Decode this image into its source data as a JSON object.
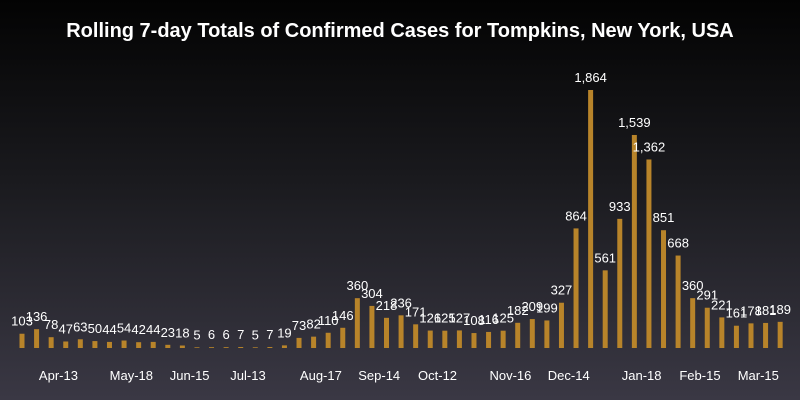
{
  "chart_data": {
    "type": "bar",
    "title": "Rolling 7-day Totals of Confirmed Cases for Tompkins, New York, USA",
    "xlabel": "",
    "ylabel": "",
    "values": [
      103,
      136,
      78,
      47,
      63,
      50,
      44,
      54,
      42,
      44,
      23,
      18,
      5,
      6,
      6,
      7,
      5,
      7,
      19,
      73,
      82,
      110,
      146,
      360,
      304,
      218,
      236,
      171,
      126,
      125,
      127,
      108,
      116,
      125,
      182,
      209,
      199,
      327,
      864,
      1864,
      561,
      933,
      1539,
      1362,
      851,
      668,
      360,
      291,
      221,
      161,
      178,
      181,
      189
    ],
    "data_labels": [
      "103",
      "136",
      "78",
      "47",
      "63",
      "50",
      "44",
      "54",
      "42",
      "44",
      "23",
      "18",
      "5",
      "6",
      "6",
      "7",
      "5",
      "7",
      "19",
      "73",
      "82",
      "110",
      "146",
      "360",
      "304",
      "218",
      "236",
      "171",
      "126",
      "125",
      "127",
      "108",
      "116",
      "125",
      "182",
      "209",
      "199",
      "327",
      "864",
      "1,864",
      "561",
      "933",
      "1,539",
      "1,362",
      "851",
      "668",
      "360",
      "291",
      "221",
      "161",
      "178",
      "181",
      "189"
    ],
    "x_ticks": [
      {
        "label": "Apr-13",
        "index": 2.5
      },
      {
        "label": "May-18",
        "index": 7.5
      },
      {
        "label": "Jun-15",
        "index": 11.5
      },
      {
        "label": "Jul-13",
        "index": 15.5
      },
      {
        "label": "Aug-17",
        "index": 20.5
      },
      {
        "label": "Sep-14",
        "index": 24.5
      },
      {
        "label": "Oct-12",
        "index": 28.5
      },
      {
        "label": "Nov-16",
        "index": 33.5
      },
      {
        "label": "Dec-14",
        "index": 37.5
      },
      {
        "label": "Jan-18",
        "index": 42.5
      },
      {
        "label": "Feb-15",
        "index": 46.5
      },
      {
        "label": "Mar-15",
        "index": 50.5
      }
    ],
    "ylim": [
      0,
      1864
    ],
    "grid": false,
    "bar_color": "#b8842a",
    "text_color": "#ffffff"
  }
}
